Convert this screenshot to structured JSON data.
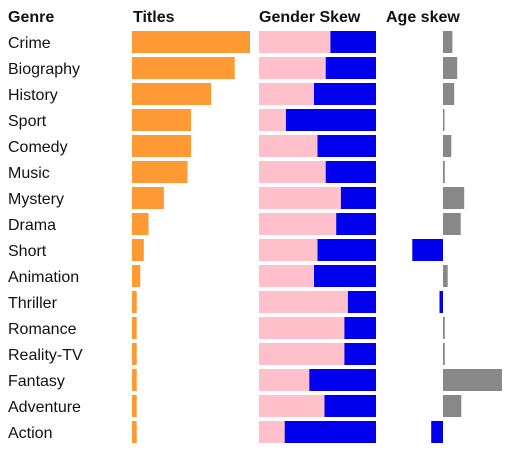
{
  "headers": {
    "genre": "Genre",
    "titles": "Titles",
    "gender": "Gender Skew",
    "age": "Age skew"
  },
  "colors": {
    "titles": "#ff9933",
    "female": "#ffc0cb",
    "male": "#0000ee",
    "age_positive": "#888888",
    "age_negative": "#0000ee"
  },
  "chart_data": {
    "type": "bar",
    "categories": [
      "Crime",
      "Biography",
      "History",
      "Sport",
      "Comedy",
      "Music",
      "Mystery",
      "Drama",
      "Short",
      "Animation",
      "Thriller",
      "Romance",
      "Reality-TV",
      "Fantasy",
      "Adventure",
      "Action"
    ],
    "series": [
      {
        "key": "titles",
        "values": [
          1.0,
          0.87,
          0.67,
          0.5,
          0.5,
          0.47,
          0.27,
          0.14,
          0.1,
          0.07,
          0.04,
          0.04,
          0.04,
          0.04,
          0.04,
          0.04
        ],
        "xlim": [
          0,
          1
        ]
      },
      {
        "key": "gender_female_share",
        "values": [
          0.61,
          0.57,
          0.47,
          0.23,
          0.5,
          0.57,
          0.7,
          0.66,
          0.5,
          0.47,
          0.76,
          0.73,
          0.73,
          0.43,
          0.56,
          0.22
        ],
        "xlim": [
          0,
          1
        ]
      },
      {
        "key": "age_skew",
        "values": [
          0.16,
          0.24,
          0.19,
          0.01,
          0.14,
          0.03,
          0.36,
          0.3,
          -0.52,
          0.08,
          -0.06,
          0.03,
          0.03,
          1.0,
          0.31,
          -0.2
        ],
        "xlim": [
          -0.6,
          1.0
        ]
      }
    ]
  }
}
